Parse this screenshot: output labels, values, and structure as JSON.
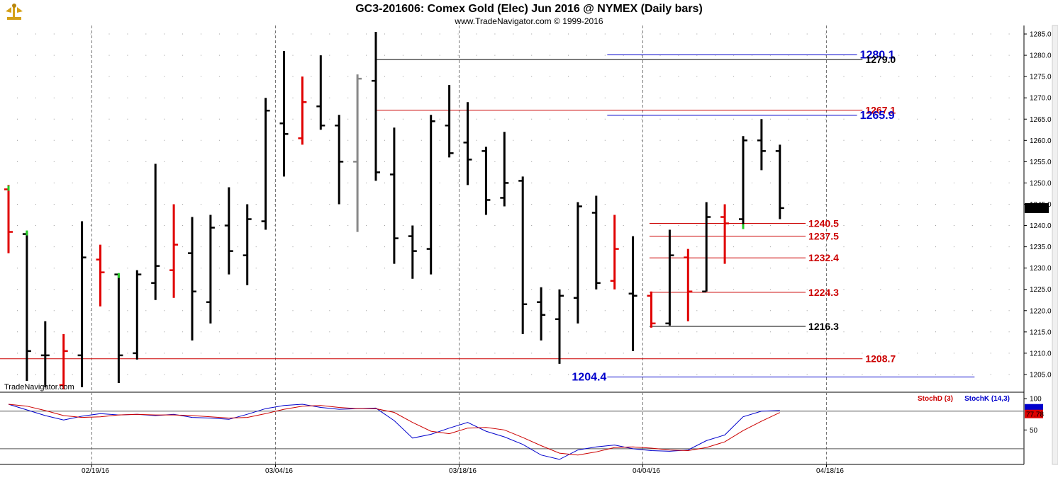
{
  "chart_data": {
    "type": "ohlc",
    "title": "GC3-201606:  Comex Gold (Elec) Jun 2016 @ NYMEX  (Daily bars)",
    "subtitle": "www.TradeNavigator.com © 1999-2016",
    "watermark": "TradeNavigator.com",
    "ylim": [
      1201,
      1287
    ],
    "y_ticks": [
      1205.0,
      1210.0,
      1215.0,
      1220.0,
      1225.0,
      1230.0,
      1235.0,
      1240.0,
      1245.0,
      1250.0,
      1255.0,
      1260.0,
      1265.0,
      1270.0,
      1275.0,
      1280.0,
      1285.0
    ],
    "x_ticks": [
      {
        "label": "02/19/16",
        "i": 5
      },
      {
        "label": "03/04/16",
        "i": 15
      },
      {
        "label": "03/18/16",
        "i": 25
      },
      {
        "label": "04/04/16",
        "i": 35
      },
      {
        "label": "04/18/16",
        "i": 45
      }
    ],
    "last_price": "1244.1",
    "last_price_value": 1244.1,
    "bars": [
      {
        "i": 0,
        "o": 1248.5,
        "h": 1249.5,
        "l": 1233.5,
        "c": 1238.5,
        "color": "red"
      },
      {
        "i": 1,
        "o": 1238.0,
        "h": 1238.5,
        "l": 1203.5,
        "c": 1210.5,
        "color": "black"
      },
      {
        "i": 2,
        "o": 1209.5,
        "h": 1217.5,
        "l": 1202.0,
        "c": 1209.5,
        "color": "black"
      },
      {
        "i": 3,
        "o": 1202.5,
        "h": 1214.5,
        "l": 1201.5,
        "c": 1210.5,
        "color": "red"
      },
      {
        "i": 4,
        "o": 1209.5,
        "h": 1241.0,
        "l": 1202.0,
        "c": 1232.5,
        "color": "black"
      },
      {
        "i": 5,
        "o": 1232.0,
        "h": 1235.5,
        "l": 1221.0,
        "c": 1229.0,
        "color": "red"
      },
      {
        "i": 6,
        "o": 1228.5,
        "h": 1228.5,
        "l": 1203.0,
        "c": 1209.5,
        "color": "black"
      },
      {
        "i": 7,
        "o": 1210.0,
        "h": 1229.5,
        "l": 1208.5,
        "c": 1228.5,
        "color": "black"
      },
      {
        "i": 8,
        "o": 1226.5,
        "h": 1254.5,
        "l": 1222.5,
        "c": 1230.5,
        "color": "black"
      },
      {
        "i": 9,
        "o": 1229.5,
        "h": 1245.0,
        "l": 1223.0,
        "c": 1235.5,
        "color": "red"
      },
      {
        "i": 10,
        "o": 1233.5,
        "h": 1242.0,
        "l": 1213.0,
        "c": 1224.5,
        "color": "black"
      },
      {
        "i": 11,
        "o": 1222.0,
        "h": 1242.5,
        "l": 1217.0,
        "c": 1239.5,
        "color": "black"
      },
      {
        "i": 12,
        "o": 1240.0,
        "h": 1249.0,
        "l": 1228.5,
        "c": 1234.0,
        "color": "black"
      },
      {
        "i": 13,
        "o": 1233.0,
        "h": 1245.0,
        "l": 1226.0,
        "c": 1241.5,
        "color": "black"
      },
      {
        "i": 14,
        "o": 1241.0,
        "h": 1270.0,
        "l": 1239.0,
        "c": 1267.0,
        "color": "black"
      },
      {
        "i": 15,
        "o": 1264.0,
        "h": 1281.0,
        "l": 1251.5,
        "c": 1261.5,
        "color": "black"
      },
      {
        "i": 16,
        "o": 1260.5,
        "h": 1275.0,
        "l": 1259.0,
        "c": 1269.0,
        "color": "red"
      },
      {
        "i": 17,
        "o": 1268.0,
        "h": 1280.0,
        "l": 1262.5,
        "c": 1263.5,
        "color": "black"
      },
      {
        "i": 18,
        "o": 1263.5,
        "h": 1266.0,
        "l": 1245.0,
        "c": 1255.0,
        "color": "black"
      },
      {
        "i": 19,
        "o": 1255.0,
        "h": 1275.5,
        "l": 1238.5,
        "c": 1274.5,
        "color": "gray"
      },
      {
        "i": 20,
        "o": 1274.0,
        "h": 1285.5,
        "l": 1250.5,
        "c": 1252.5,
        "color": "black"
      },
      {
        "i": 21,
        "o": 1252.0,
        "h": 1263.0,
        "l": 1231.0,
        "c": 1237.0,
        "color": "black"
      },
      {
        "i": 22,
        "o": 1237.5,
        "h": 1240.0,
        "l": 1227.5,
        "c": 1234.0,
        "color": "black"
      },
      {
        "i": 23,
        "o": 1234.5,
        "h": 1266.0,
        "l": 1228.5,
        "c": 1264.5,
        "color": "black"
      },
      {
        "i": 24,
        "o": 1263.5,
        "h": 1273.0,
        "l": 1256.0,
        "c": 1257.0,
        "color": "black"
      },
      {
        "i": 25,
        "o": 1259.5,
        "h": 1269.0,
        "l": 1249.5,
        "c": 1255.5,
        "color": "black"
      },
      {
        "i": 26,
        "o": 1257.5,
        "h": 1258.5,
        "l": 1242.5,
        "c": 1246.0,
        "color": "black"
      },
      {
        "i": 27,
        "o": 1246.5,
        "h": 1262.0,
        "l": 1244.5,
        "c": 1250.0,
        "color": "black"
      },
      {
        "i": 28,
        "o": 1250.5,
        "h": 1251.5,
        "l": 1214.5,
        "c": 1221.5,
        "color": "black"
      },
      {
        "i": 29,
        "o": 1222.0,
        "h": 1225.5,
        "l": 1213.0,
        "c": 1219.0,
        "color": "black"
      },
      {
        "i": 30,
        "o": 1218.0,
        "h": 1225.0,
        "l": 1207.5,
        "c": 1223.5,
        "color": "black"
      },
      {
        "i": 31,
        "o": 1223.0,
        "h": 1245.5,
        "l": 1217.0,
        "c": 1244.5,
        "color": "black"
      },
      {
        "i": 32,
        "o": 1243.0,
        "h": 1247.0,
        "l": 1225.0,
        "c": 1226.5,
        "color": "black"
      },
      {
        "i": 33,
        "o": 1227.0,
        "h": 1242.5,
        "l": 1225.0,
        "c": 1234.5,
        "color": "red"
      },
      {
        "i": 34,
        "o": 1224.0,
        "h": 1237.5,
        "l": 1210.5,
        "c": 1223.5,
        "color": "black"
      },
      {
        "i": 35,
        "o": 1223.5,
        "h": 1224.5,
        "l": 1216.0,
        "c": 1217.0,
        "color": "red"
      },
      {
        "i": 36,
        "o": 1217.0,
        "h": 1239.0,
        "l": 1216.5,
        "c": 1233.0,
        "color": "black"
      },
      {
        "i": 37,
        "o": 1232.5,
        "h": 1234.5,
        "l": 1217.5,
        "c": 1224.5,
        "color": "red"
      },
      {
        "i": 38,
        "o": 1224.5,
        "h": 1245.5,
        "l": 1224.5,
        "c": 1242.0,
        "color": "black"
      },
      {
        "i": 39,
        "o": 1242.0,
        "h": 1245.0,
        "l": 1231.0,
        "c": 1240.5,
        "color": "red"
      },
      {
        "i": 40,
        "o": 1241.5,
        "h": 1261.0,
        "l": 1240.0,
        "c": 1260.0,
        "color": "black"
      },
      {
        "i": 41,
        "o": 1260.0,
        "h": 1265.0,
        "l": 1253.0,
        "c": 1257.5,
        "color": "black"
      },
      {
        "i": 42,
        "o": 1257.5,
        "h": 1259.0,
        "l": 1241.5,
        "c": 1244.1,
        "color": "black"
      }
    ],
    "green_ticks": [
      {
        "i": 0,
        "y": 1249.0
      },
      {
        "i": 1,
        "y": 1238.5
      },
      {
        "i": 6,
        "y": 1228.5
      },
      {
        "i": 40,
        "y": 1240.0
      }
    ],
    "levels": [
      {
        "value": 1280.1,
        "label": "1280.1",
        "color": "#0000cc",
        "from_i": 32.6,
        "to_i": 46.2,
        "label_side": "right",
        "big": true
      },
      {
        "value": 1279.0,
        "label": "1279.0",
        "color": "#000000",
        "from_i": 20.0,
        "to_i": 46.5,
        "label_side": "right",
        "big": false
      },
      {
        "value": 1267.1,
        "label": "1267.1",
        "color": "#cc0000",
        "from_i": 20.0,
        "to_i": 46.5,
        "label_side": "right",
        "big": false
      },
      {
        "value": 1265.9,
        "label": "1265.9",
        "color": "#0000cc",
        "from_i": 32.6,
        "to_i": 46.2,
        "label_side": "right",
        "big": true
      },
      {
        "value": 1240.5,
        "label": "1240.5",
        "color": "#cc0000",
        "from_i": 34.9,
        "to_i": 43.4,
        "label_side": "right",
        "big": false
      },
      {
        "value": 1237.5,
        "label": "1237.5",
        "color": "#cc0000",
        "from_i": 34.9,
        "to_i": 43.4,
        "label_side": "right",
        "big": false
      },
      {
        "value": 1232.4,
        "label": "1232.4",
        "color": "#cc0000",
        "from_i": 34.9,
        "to_i": 43.4,
        "label_side": "right",
        "big": false
      },
      {
        "value": 1224.3,
        "label": "1224.3",
        "color": "#cc0000",
        "from_i": 34.9,
        "to_i": 43.4,
        "label_side": "right",
        "big": false
      },
      {
        "value": 1216.3,
        "label": "1216.3",
        "color": "#000000",
        "from_i": 34.9,
        "to_i": 43.4,
        "label_side": "right",
        "big": false
      },
      {
        "value": 1208.7,
        "label": "1208.7",
        "color": "#cc0000",
        "from_i": -0.8,
        "to_i": 46.5,
        "label_side": "right",
        "big": false
      },
      {
        "value": 1204.4,
        "label": "1204.4",
        "color": "#0000cc",
        "from_i": 32.6,
        "to_i": 52.6,
        "label_side": "left",
        "big": true
      }
    ],
    "stoch": {
      "legend_d": "StochD (3)",
      "legend_k": "StochK (14,3)",
      "ylim": [
        -5,
        108
      ],
      "y_ticks": [
        50,
        100
      ],
      "ref_lines": [
        20,
        80
      ],
      "last_d": "77.78",
      "last_d_value": 77.8,
      "stoch_k": [
        91,
        82,
        73,
        66,
        72,
        76,
        74,
        75,
        73,
        75,
        70,
        69,
        67,
        75,
        84,
        89,
        91,
        86,
        83,
        84,
        85,
        65,
        37,
        43,
        53,
        62,
        48,
        39,
        27,
        10,
        3,
        18,
        23,
        26,
        20,
        17,
        16,
        18,
        33,
        42,
        71,
        80,
        81
      ],
      "stoch_d": [
        91,
        88,
        81,
        73,
        70,
        71,
        74,
        75,
        74,
        74,
        73,
        71,
        69,
        70,
        76,
        83,
        88,
        89,
        86,
        84,
        84,
        78,
        62,
        48,
        44,
        53,
        54,
        50,
        38,
        25,
        13,
        10,
        15,
        22,
        23,
        21,
        18,
        17,
        22,
        31,
        49,
        64,
        77.8
      ]
    }
  }
}
